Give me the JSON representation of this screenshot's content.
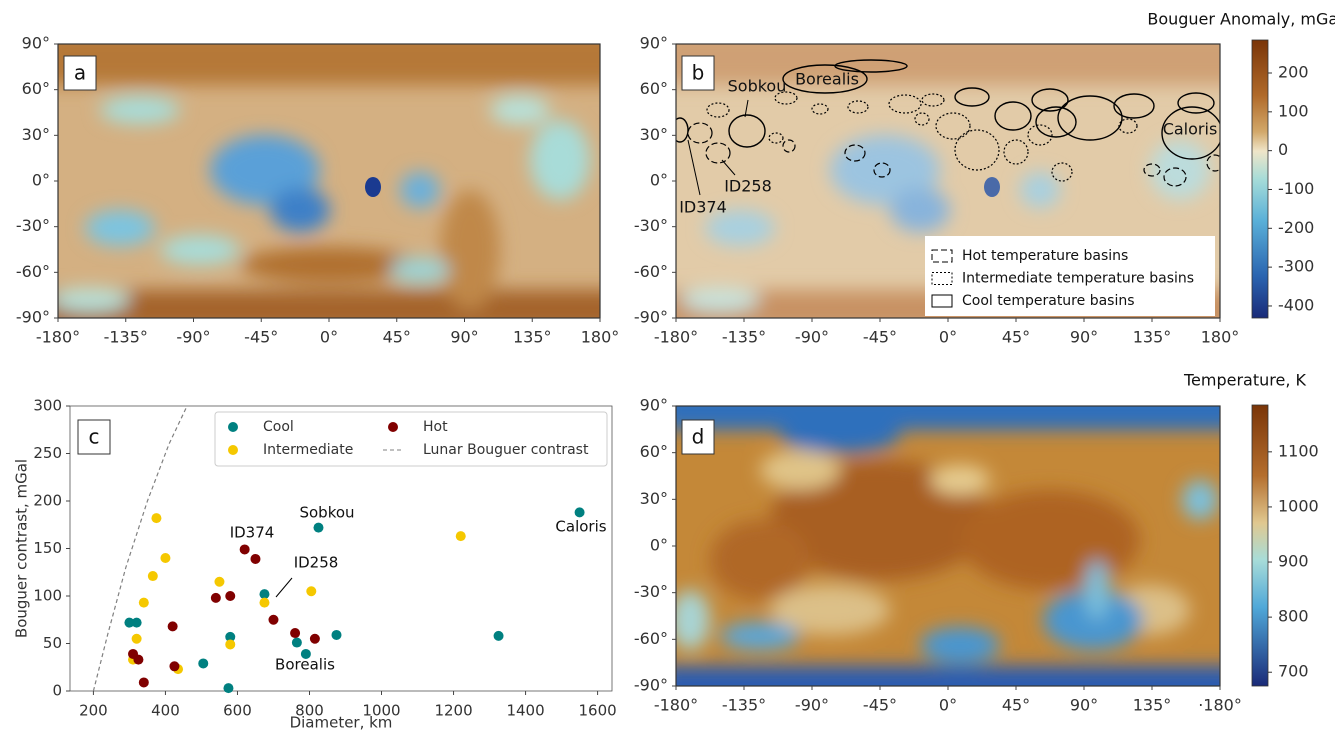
{
  "chart_data": [
    {
      "type": "map",
      "panel_label": "a",
      "xlim": [
        -180,
        180
      ],
      "ylim": [
        -90,
        90
      ],
      "xticks": [
        {
          "value": -180,
          "label": "-180°"
        },
        {
          "value": -135,
          "label": "-135°"
        },
        {
          "value": -90,
          "label": "-90°"
        },
        {
          "value": -45,
          "label": "-45°"
        },
        {
          "value": 0,
          "label": "0°"
        },
        {
          "value": 45,
          "label": "45°"
        },
        {
          "value": 90,
          "label": "90°"
        },
        {
          "value": 135,
          "label": "135°"
        },
        {
          "value": 180,
          "label": "180°"
        }
      ],
      "yticks": [
        {
          "value": 90,
          "label": "90°"
        },
        {
          "value": 60,
          "label": "60°"
        },
        {
          "value": 30,
          "label": "30°"
        },
        {
          "value": 0,
          "label": "0°"
        },
        {
          "value": -30,
          "label": "-30°"
        },
        {
          "value": -60,
          "label": "-60°"
        },
        {
          "value": -90,
          "label": "-90°"
        }
      ]
    },
    {
      "type": "map",
      "panel_label": "b",
      "xlim": [
        -180,
        180
      ],
      "ylim": [
        -90,
        90
      ],
      "xticks": [
        {
          "value": -180,
          "label": "-180°"
        },
        {
          "value": -135,
          "label": "-135°"
        },
        {
          "value": -90,
          "label": "-90°"
        },
        {
          "value": -45,
          "label": "-45°"
        },
        {
          "value": 0,
          "label": "0°"
        },
        {
          "value": 45,
          "label": "45°"
        },
        {
          "value": 90,
          "label": "90°"
        },
        {
          "value": 135,
          "label": "135°"
        },
        {
          "value": 180,
          "label": "180°"
        }
      ],
      "yticks": [
        {
          "value": 90,
          "label": "90°"
        },
        {
          "value": 60,
          "label": "60°"
        },
        {
          "value": 30,
          "label": "30°"
        },
        {
          "value": 0,
          "label": "0°"
        },
        {
          "value": -30,
          "label": "-30°"
        },
        {
          "value": -60,
          "label": "-60°"
        },
        {
          "value": -90,
          "label": "-90°"
        }
      ],
      "annotations": [
        "Sobkou",
        "Borealis",
        "ID258",
        "ID374",
        "Caloris"
      ],
      "legend": [
        "Hot temperature basins",
        "Intermediate temperature basins",
        "Cool temperature basins"
      ],
      "colorbar": {
        "label": "Bouguer Anomaly, mGal",
        "lim": [
          -431,
          285
        ],
        "ticks": [
          200,
          100,
          0,
          -100,
          -200,
          -300,
          -400
        ]
      }
    },
    {
      "type": "scatter",
      "panel_label": "c",
      "xlabel": "Diameter, km",
      "ylabel": "Bouguer contrast, mGal",
      "xlim": [
        135,
        1640
      ],
      "ylim": [
        0,
        300
      ],
      "xticks": [
        200,
        400,
        600,
        800,
        1000,
        1200,
        1400,
        1600
      ],
      "yticks": [
        0,
        50,
        100,
        150,
        200,
        250,
        300
      ],
      "series": [
        {
          "name": "Cool",
          "color": "#008080",
          "x": [
            300,
            320,
            505,
            580,
            575,
            675,
            765,
            790,
            825,
            875,
            1325,
            1550
          ],
          "values": [
            72,
            72,
            29,
            57,
            3,
            102,
            51,
            39,
            172,
            59,
            58,
            188
          ]
        },
        {
          "name": "Intermediate",
          "color": "#f5c800",
          "x": [
            310,
            320,
            340,
            365,
            375,
            400,
            435,
            550,
            580,
            675,
            805,
            1220
          ],
          "values": [
            33,
            55,
            93,
            121,
            182,
            140,
            23,
            115,
            49,
            93,
            105,
            163
          ]
        },
        {
          "name": "Hot",
          "color": "#800000",
          "x": [
            310,
            325,
            340,
            420,
            425,
            540,
            580,
            620,
            650,
            700,
            760,
            815
          ],
          "values": [
            39,
            33,
            9,
            68,
            26,
            98,
            100,
            149,
            139,
            75,
            61,
            55
          ]
        },
        {
          "name": "Lunar Bouguer contrast",
          "color": "#808080",
          "x": [
            200,
            240,
            290,
            350,
            410,
            460
          ],
          "values": [
            0,
            60,
            130,
            200,
            260,
            300
          ]
        }
      ],
      "annotations": [
        "ID374",
        "Sobkou",
        "ID258",
        "Borealis",
        "Caloris"
      ]
    },
    {
      "type": "map",
      "panel_label": "d",
      "xlim": [
        -180,
        180
      ],
      "ylim": [
        -90,
        90
      ],
      "xticks": [
        {
          "value": -180,
          "label": "-180°"
        },
        {
          "value": -135,
          "label": "-135°"
        },
        {
          "value": -90,
          "label": "-90°"
        },
        {
          "value": -45,
          "label": "-45°"
        },
        {
          "value": 0,
          "label": "0°"
        },
        {
          "value": 45,
          "label": "45°"
        },
        {
          "value": 90,
          "label": "90°"
        },
        {
          "value": 135,
          "label": "135°"
        },
        {
          "value": 180,
          "label": "·180°"
        }
      ],
      "yticks": [
        {
          "value": 90,
          "label": "90°"
        },
        {
          "value": 60,
          "label": "60°"
        },
        {
          "value": 30,
          "label": "30°"
        },
        {
          "value": 0,
          "label": "0°"
        },
        {
          "value": -30,
          "label": "-30°"
        },
        {
          "value": -60,
          "label": "-60°"
        },
        {
          "value": -90,
          "label": "-90°"
        }
      ],
      "colorbar": {
        "label": "Temperature, K",
        "lim": [
          675,
          1185
        ],
        "ticks": [
          1100,
          1000,
          900,
          800,
          700
        ]
      }
    }
  ]
}
